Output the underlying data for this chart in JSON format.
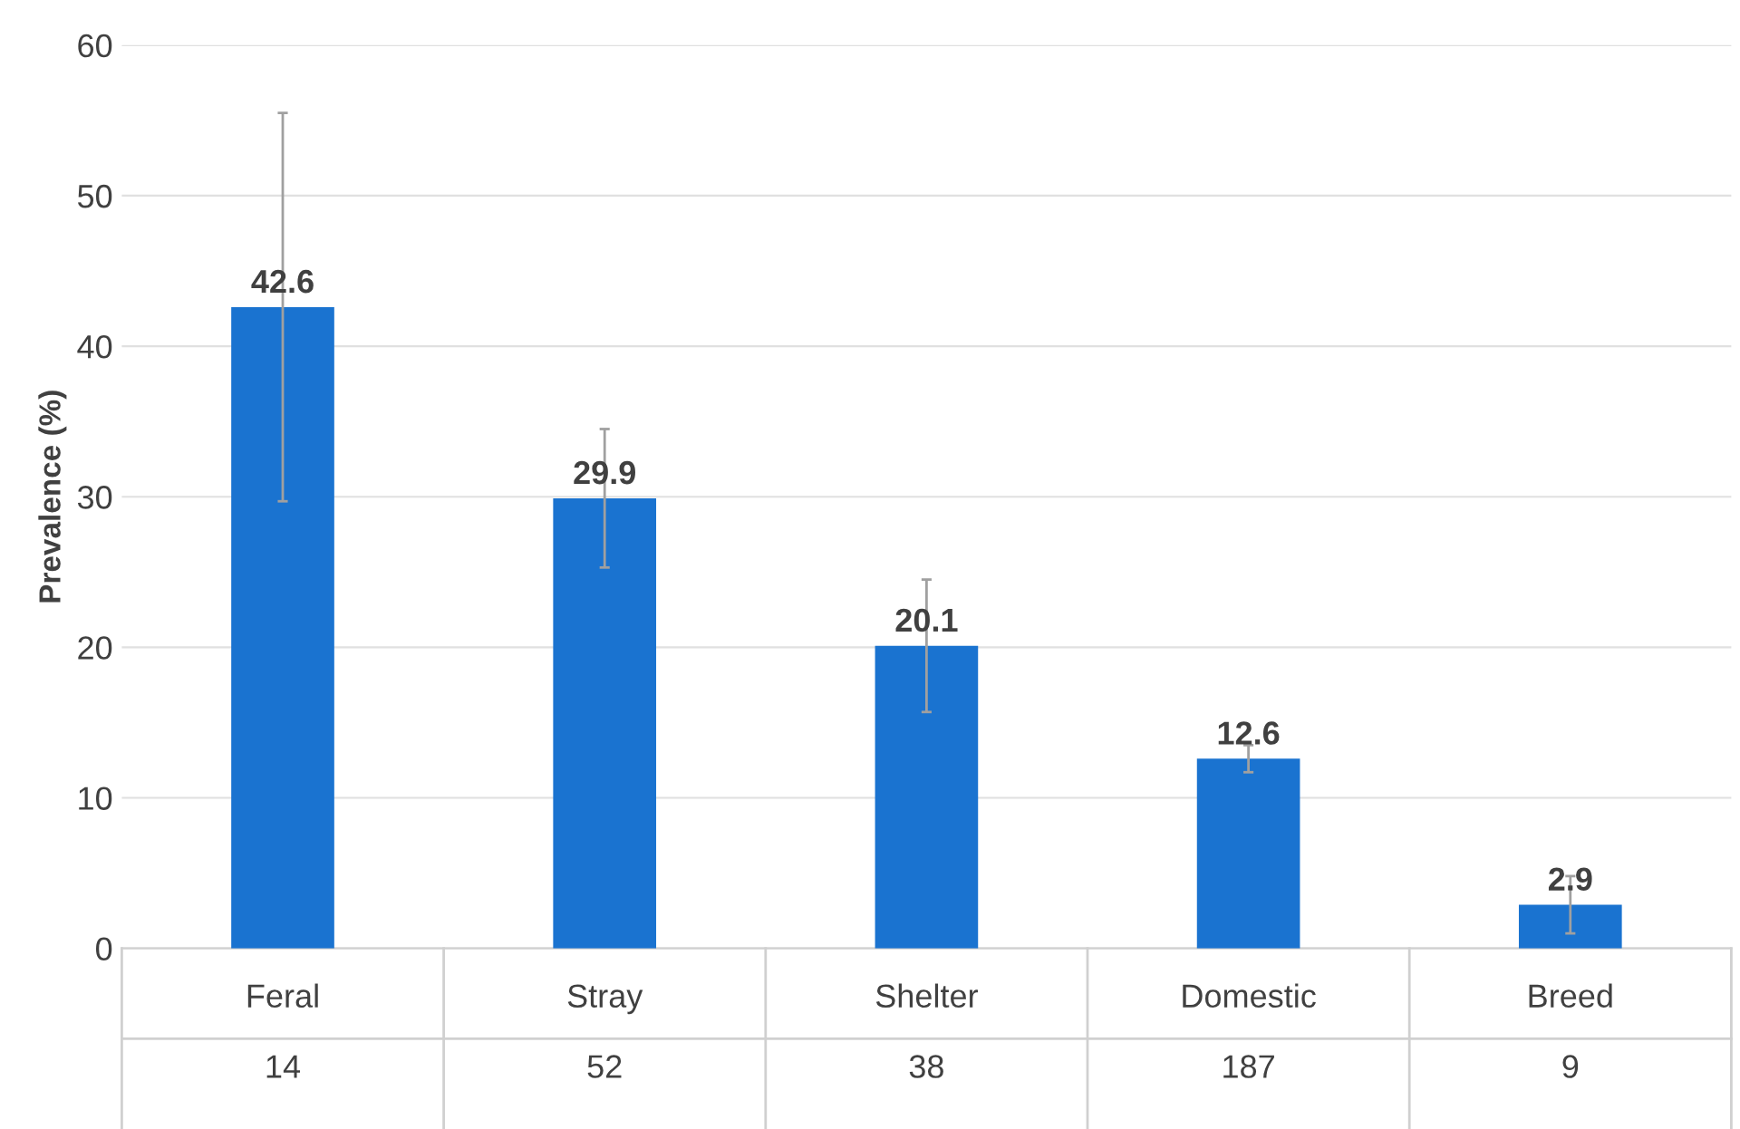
{
  "chart_data": {
    "type": "bar",
    "ylabel": "Prevalence (%)",
    "categories": [
      "Feral\n\n14",
      "Stray\n\n52",
      "Shelter\n\n38",
      "Domestic\n\n187",
      "Breed\n\n9"
    ],
    "values": [
      42.6,
      29.9,
      20.1,
      12.6,
      2.9
    ],
    "errors": [
      12.9,
      4.6,
      4.4,
      0.9,
      1.9
    ],
    "color": "#1a73d0",
    "data_labels": true,
    "ylim": [
      0,
      60
    ],
    "yticks": [
      0,
      10,
      20,
      30,
      40,
      50,
      60
    ],
    "grid": "y"
  }
}
